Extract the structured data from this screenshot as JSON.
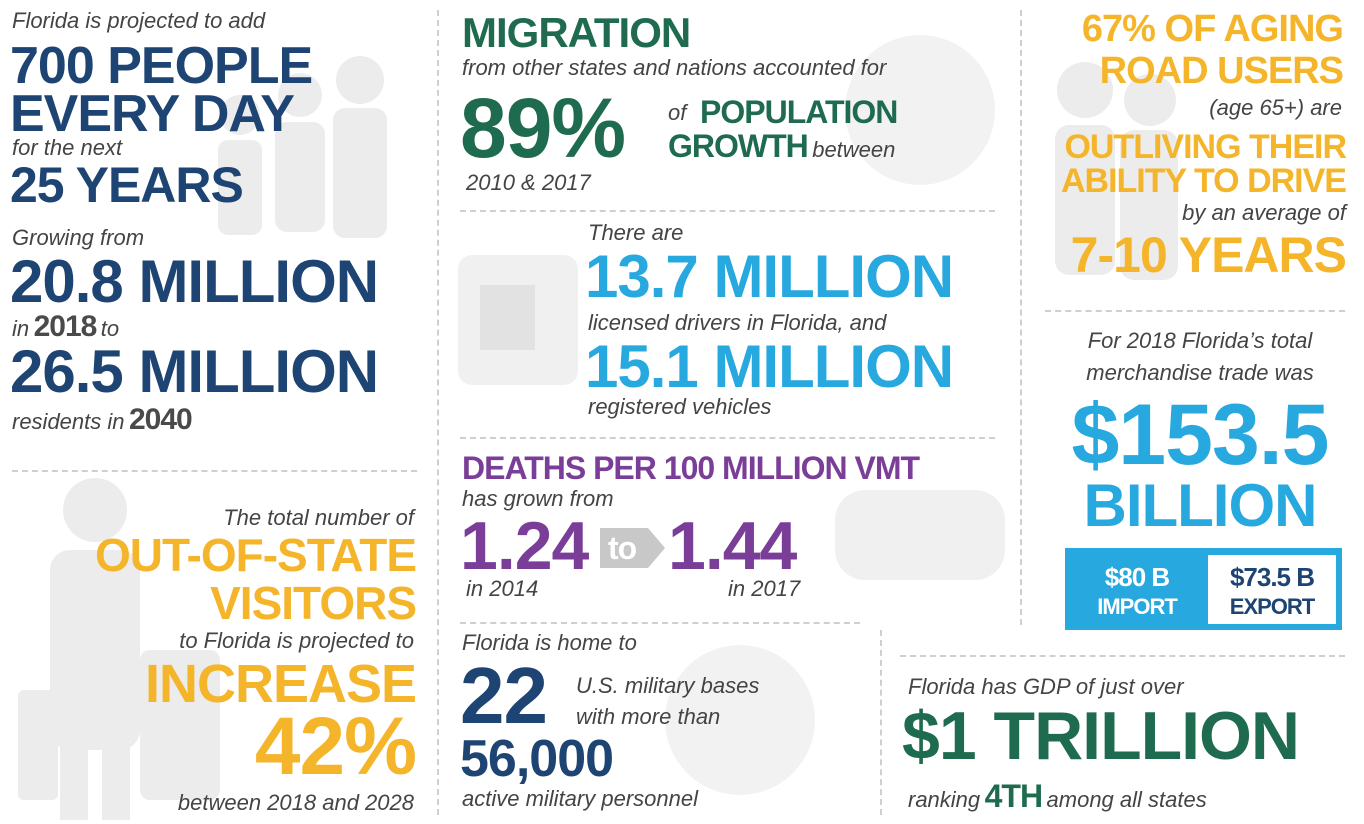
{
  "population": {
    "intro": "Florida is projected to add",
    "line1": "700 PEOPLE",
    "line2": "EVERY DAY",
    "mid": "for the next",
    "years": "25 YEARS",
    "growing": "Growing from",
    "from_value": "20.8 MILLION",
    "in": "in",
    "from_year": "2018",
    "to": "to",
    "to_value": "26.5 MILLION",
    "residents": "residents in",
    "to_year": "2040"
  },
  "visitors": {
    "intro": "The total number of",
    "line1": "OUT-OF-STATE",
    "line2": "VISITORS",
    "mid": "to Florida is projected to",
    "verb": "INCREASE",
    "percent": "42%",
    "period": "between 2018 and 2028"
  },
  "migration": {
    "title": "MIGRATION",
    "subtitle": "from other states and nations accounted for",
    "percent": "89%",
    "of": "of",
    "line1": "POPULATION",
    "line2": "GROWTH",
    "between": "between",
    "period": "2010 & 2017"
  },
  "drivers": {
    "intro": "There are",
    "licensed_value": "13.7 MILLION",
    "licensed_text": "licensed drivers in Florida, and",
    "vehicles_value": "15.1 MILLION",
    "vehicles_text": "registered vehicles"
  },
  "deaths": {
    "title": "DEATHS PER 100 MILLION VMT",
    "subtitle": "has grown from",
    "from_value": "1.24",
    "to": "to",
    "to_value": "1.44",
    "from_year": "in 2014",
    "to_year": "in 2017"
  },
  "military": {
    "intro": "Florida is home to",
    "bases_value": "22",
    "bases_text1": "U.S. military bases",
    "bases_text2": "with more than",
    "personnel_value": "56,000",
    "personnel_text": "active military personnel"
  },
  "aging": {
    "line1": "67% OF AGING",
    "line2": "ROAD USERS",
    "age": "(age 65+) are",
    "line3": "OUTLIVING THEIR",
    "line4": "ABILITY TO DRIVE",
    "average": "by an average of",
    "years": "7-10 YEARS"
  },
  "trade": {
    "intro1": "For 2018 Florida’s total",
    "intro2": "merchandise trade was",
    "value": "$153.5",
    "unit": "BILLION",
    "import_value": "$80 B",
    "import_label": "IMPORT",
    "export_value": "$73.5 B",
    "export_label": "EXPORT"
  },
  "gdp": {
    "intro": "Florida has GDP of just over",
    "value": "$1 TRILLION",
    "ranking": "ranking",
    "rank": "4TH",
    "suffix": "among all states"
  }
}
